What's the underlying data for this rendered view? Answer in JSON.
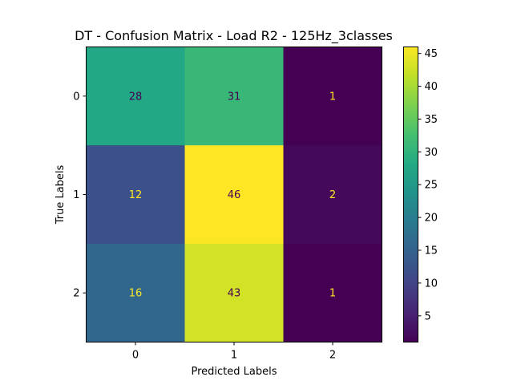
{
  "chart_data": {
    "type": "heatmap",
    "title": "DT - Confusion Matrix - Load R2 - 125Hz_3classes",
    "xlabel": "Predicted Labels",
    "ylabel": "True Labels",
    "x_categories": [
      "0",
      "1",
      "2"
    ],
    "y_categories": [
      "0",
      "1",
      "2"
    ],
    "values": [
      [
        28,
        31,
        1
      ],
      [
        12,
        46,
        2
      ],
      [
        16,
        43,
        1
      ]
    ],
    "colormap": "viridis",
    "colorbar": {
      "range": [
        1,
        46
      ],
      "ticks": [
        5,
        10,
        15,
        20,
        25,
        30,
        35,
        40,
        45
      ]
    },
    "text_colors": {
      "dark": "#440154",
      "light": "#fde725"
    }
  }
}
